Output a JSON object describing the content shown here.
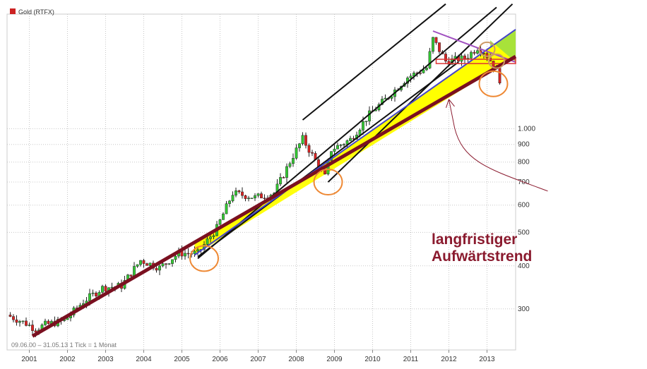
{
  "chart_data": {
    "type": "candlestick",
    "title": "",
    "legend": {
      "label": "Gold (RTFX)",
      "color": "#cc2222",
      "placement": "top-left"
    },
    "info_text": "09.06.00 – 31.05.13  1 Tick = 1 Monat",
    "x_tick_labels": [
      "2001",
      "2002",
      "2003",
      "2004",
      "2005",
      "2006",
      "2007",
      "2008",
      "2009",
      "2010",
      "2011",
      "2012",
      "2013"
    ],
    "y_scale": "log",
    "y_tick_labels": [
      "300",
      "400",
      "500",
      "600",
      "700",
      "800",
      "900",
      "1.000"
    ],
    "y_tick_values": [
      300,
      400,
      500,
      600,
      700,
      800,
      900,
      1000
    ],
    "ylim": [
      228,
      2150
    ],
    "xlim": [
      "2000-06",
      "2013-10"
    ],
    "grid": true,
    "colors": {
      "up": "#33cc33",
      "down": "#dd2222",
      "wick": "#222222"
    },
    "series": [
      {
        "name": "Gold (RTFX)",
        "close_points": [
          {
            "date": "2000-06",
            "close": 288
          },
          {
            "date": "2000-12",
            "close": 272
          },
          {
            "date": "2001-03",
            "close": 262
          },
          {
            "date": "2001-06",
            "close": 270
          },
          {
            "date": "2001-12",
            "close": 277
          },
          {
            "date": "2002-06",
            "close": 315
          },
          {
            "date": "2002-12",
            "close": 345
          },
          {
            "date": "2003-06",
            "close": 350
          },
          {
            "date": "2003-12",
            "close": 415
          },
          {
            "date": "2004-06",
            "close": 395
          },
          {
            "date": "2004-12",
            "close": 435
          },
          {
            "date": "2005-06",
            "close": 435
          },
          {
            "date": "2005-12",
            "close": 515
          },
          {
            "date": "2006-05",
            "close": 650
          },
          {
            "date": "2006-12",
            "close": 632
          },
          {
            "date": "2007-06",
            "close": 650
          },
          {
            "date": "2007-12",
            "close": 835
          },
          {
            "date": "2008-03",
            "close": 935
          },
          {
            "date": "2008-10",
            "close": 725
          },
          {
            "date": "2008-12",
            "close": 870
          },
          {
            "date": "2009-06",
            "close": 930
          },
          {
            "date": "2009-12",
            "close": 1100
          },
          {
            "date": "2010-06",
            "close": 1240
          },
          {
            "date": "2010-12",
            "close": 1410
          },
          {
            "date": "2011-06",
            "close": 1500
          },
          {
            "date": "2011-08",
            "close": 1820
          },
          {
            "date": "2011-12",
            "close": 1570
          },
          {
            "date": "2012-06",
            "close": 1600
          },
          {
            "date": "2012-10",
            "close": 1720
          },
          {
            "date": "2012-12",
            "close": 1675
          },
          {
            "date": "2013-02",
            "close": 1580
          },
          {
            "date": "2013-04",
            "close": 1470
          },
          {
            "date": "2013-05",
            "close": 1390
          }
        ]
      }
    ],
    "annotations": {
      "label_line1": "langfristiger",
      "label_line2": "Aufwärtstrend",
      "label_color": "#8a1a2e",
      "long_term_trendline": {
        "from": {
          "date": "2001-02",
          "value": 250
        },
        "to": {
          "date": "2013-10",
          "value": 1620
        },
        "color": "#7a1020"
      },
      "blue_trendline": {
        "from": {
          "date": "2005-05",
          "value": 430
        },
        "to": {
          "date": "2013-10",
          "value": 1940
        },
        "color": "#4444cc"
      },
      "resistance_line": {
        "from": {
          "date": "2011-08",
          "value": 1920
        },
        "to": {
          "date": "2013-10",
          "value": 1560
        },
        "color": "#a050c0"
      },
      "support_box": {
        "from": {
          "date": "2011-09",
          "value": 1545
        },
        "to": {
          "date": "2013-10",
          "value": 1590
        },
        "color": "#dd3333"
      },
      "channel_lines": [
        {
          "from": {
            "date": "2008-03",
            "value": 1060
          },
          "to": {
            "date": "2011-12",
            "value": 2300
          }
        },
        {
          "from": {
            "date": "2005-06",
            "value": 420
          },
          "to": {
            "date": "2013-04",
            "value": 2250
          }
        },
        {
          "from": {
            "date": "2005-06",
            "value": 425
          },
          "to": {
            "date": "2012-04",
            "value": 1560
          }
        },
        {
          "from": {
            "date": "2008-11",
            "value": 700
          },
          "to": {
            "date": "2013-09",
            "value": 2300
          }
        }
      ],
      "highlight_circles": [
        {
          "date": "2005-08",
          "value": 420,
          "color": "#ee8833"
        },
        {
          "date": "2008-11",
          "value": 700,
          "color": "#ee8833"
        },
        {
          "date": "2013-03",
          "value": 1350,
          "color": "#ee8833"
        },
        {
          "date": "2013-01",
          "value": 1700,
          "color": "#cc9966"
        },
        {
          "date": "2013-04",
          "value": 1570,
          "color": "#cc9966"
        }
      ]
    }
  }
}
